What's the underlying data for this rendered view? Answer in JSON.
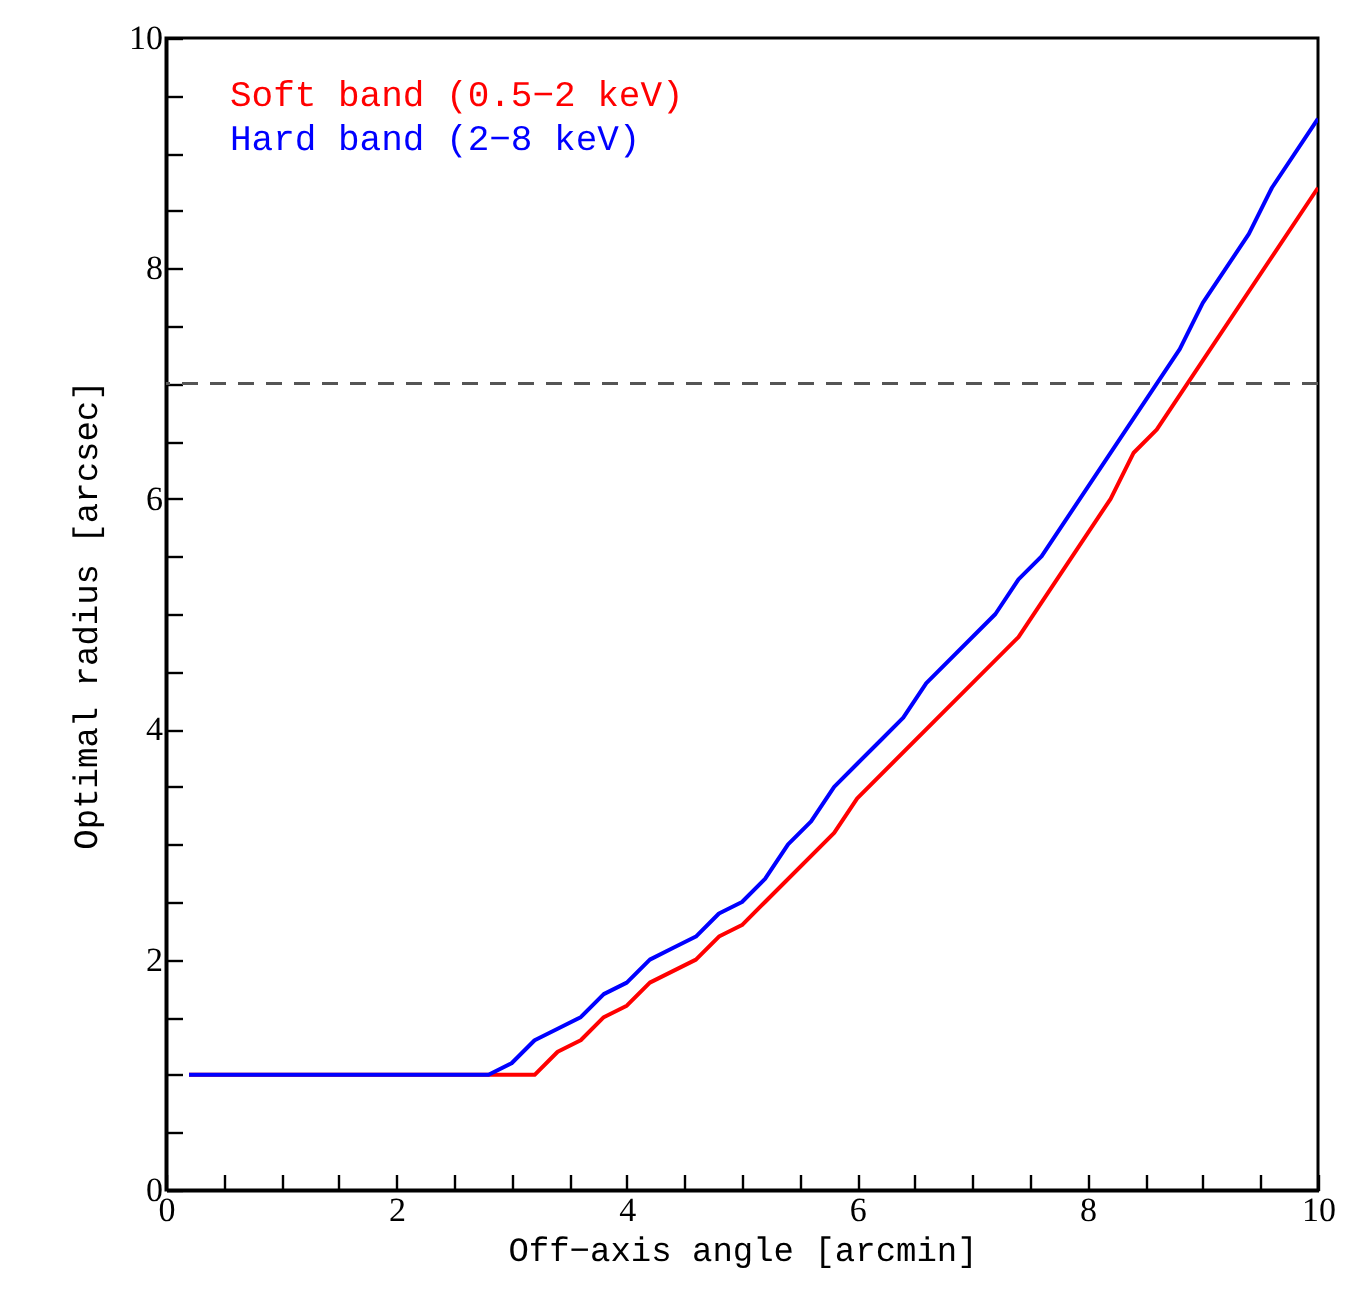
{
  "chart_data": {
    "type": "line",
    "xlabel": "Off−axis angle [arcmin]",
    "ylabel": "Optimal radius [arcsec]",
    "xlim": [
      0,
      10
    ],
    "ylim": [
      0,
      10
    ],
    "xticks": [
      0,
      {
        "value": 0.5,
        "label": null
      },
      2,
      {
        "value": 1,
        "label": null
      },
      {
        "value": 1.5,
        "label": null
      },
      {
        "value": 2.5,
        "label": null
      },
      {
        "value": 3,
        "label": null
      },
      {
        "value": 3.5,
        "label": null
      },
      4,
      {
        "value": 4.5,
        "label": null
      },
      {
        "value": 5,
        "label": null
      },
      {
        "value": 5.5,
        "label": null
      },
      6,
      {
        "value": 6.5,
        "label": null
      },
      {
        "value": 7,
        "label": null
      },
      {
        "value": 7.5,
        "label": null
      },
      8,
      {
        "value": 8.5,
        "label": null
      },
      {
        "value": 9,
        "label": null
      },
      {
        "value": 9.5,
        "label": null
      },
      10
    ],
    "yticks": [
      0,
      {
        "value": 0.5,
        "label": null
      },
      {
        "value": 1,
        "label": null
      },
      {
        "value": 1.5,
        "label": null
      },
      2,
      {
        "value": 2.5,
        "label": null
      },
      {
        "value": 3,
        "label": null
      },
      {
        "value": 3.5,
        "label": null
      },
      4,
      {
        "value": 4.5,
        "label": null
      },
      {
        "value": 5,
        "label": null
      },
      {
        "value": 5.5,
        "label": null
      },
      6,
      {
        "value": 6.5,
        "label": null
      },
      {
        "value": 7,
        "label": null
      },
      {
        "value": 7.5,
        "label": null
      },
      8,
      {
        "value": 8.5,
        "label": null
      },
      {
        "value": 9,
        "label": null
      },
      {
        "value": 9.5,
        "label": null
      },
      10
    ],
    "legend": "top left",
    "grid": false,
    "marker": "none",
    "line_style": "solid",
    "ref_lines": [
      {
        "axis": "y",
        "value": 7,
        "color": "#555555",
        "line_style": "dashed"
      }
    ],
    "series": [
      {
        "name": "Soft band (0.5−2 keV)",
        "color": "#ff0000",
        "x": [
          0.2,
          3.2,
          3.4,
          3.6,
          3.8,
          4.0,
          4.2,
          4.4,
          4.6,
          4.8,
          5.0,
          5.2,
          5.8,
          6.0,
          7.4,
          8.2,
          8.4,
          8.6,
          10
        ],
        "values": [
          1,
          1,
          1.2,
          1.3,
          1.5,
          1.6,
          1.8,
          1.9,
          2.0,
          2.2,
          2.3,
          2.5,
          3.1,
          3.4,
          4.8,
          6.0,
          6.4,
          6.6,
          8.7
        ]
      },
      {
        "name": "Hard band (2−8 keV)",
        "color": "#0000ff",
        "x": [
          0.2,
          2.8,
          3.0,
          3.2,
          3.4,
          3.6,
          3.8,
          4.0,
          4.2,
          4.4,
          4.6,
          4.8,
          5.0,
          5.2,
          5.4,
          5.6,
          5.8,
          6.0,
          6.2,
          6.4,
          6.6,
          7.2,
          7.4,
          7.6,
          8.8,
          9.0,
          9.4,
          9.6,
          10
        ],
        "values": [
          1,
          1,
          1.1,
          1.3,
          1.4,
          1.5,
          1.7,
          1.8,
          2.0,
          2.1,
          2.2,
          2.4,
          2.5,
          2.7,
          3.0,
          3.2,
          3.5,
          3.7,
          3.9,
          4.1,
          4.4,
          5.0,
          5.3,
          5.5,
          7.3,
          7.7,
          8.3,
          8.7,
          9.3
        ]
      }
    ]
  }
}
